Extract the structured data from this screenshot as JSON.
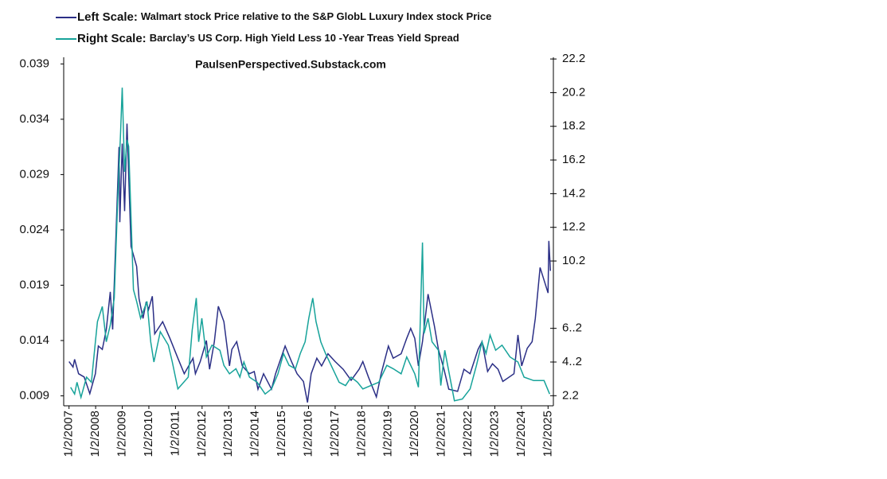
{
  "chart_data": {
    "type": "line",
    "annotation": "PaulsenPerspectived.Substack.com",
    "xlim": [
      2006.8,
      2025.2
    ],
    "xticks": [
      {
        "value": 2007,
        "label": "1/2/2007"
      },
      {
        "value": 2008,
        "label": "1/2/2008"
      },
      {
        "value": 2009,
        "label": "1/2/2009"
      },
      {
        "value": 2010,
        "label": "1/2/2010"
      },
      {
        "value": 2011,
        "label": "1/2/2011"
      },
      {
        "value": 2012,
        "label": "1/2/2012"
      },
      {
        "value": 2013,
        "label": "1/2/2013"
      },
      {
        "value": 2014,
        "label": "1/2/2014"
      },
      {
        "value": 2015,
        "label": "1/2/2015"
      },
      {
        "value": 2016,
        "label": "1/2/2016"
      },
      {
        "value": 2017,
        "label": "1/2/2017"
      },
      {
        "value": 2018,
        "label": "1/2/2018"
      },
      {
        "value": 2019,
        "label": "1/2/2019"
      },
      {
        "value": 2020,
        "label": "1/2/2020"
      },
      {
        "value": 2021,
        "label": "1/2/2021"
      },
      {
        "value": 2022,
        "label": "1/2/2022"
      },
      {
        "value": 2023,
        "label": "1/2/2023"
      },
      {
        "value": 2024,
        "label": "1/2/2024"
      },
      {
        "value": 2025,
        "label": "1/2/2025"
      }
    ],
    "ylim": [
      0.0081,
      0.0396
    ],
    "yticks": [
      0.009,
      0.014,
      0.019,
      0.024,
      0.029,
      0.034,
      0.039
    ],
    "y2lim": [
      1.6,
      22.3
    ],
    "y2ticks": [
      2.2,
      {
        "value": 4.2,
        "label": "4..2"
      },
      {
        "value": 6.2,
        "label": "6..2"
      },
      10.2,
      12.2,
      14.2,
      16.2,
      18.2,
      20.2,
      22.2
    ],
    "series": [
      {
        "scale_label": "Left Scale:",
        "name": "Walmart stock Price relative to the S&P GlobL Luxury Index stock Price",
        "color": "#2b2f86",
        "axis": "y",
        "x": [
          2007.0,
          2007.15,
          2007.21,
          2007.36,
          2007.57,
          2007.78,
          2007.99,
          2008.1,
          2008.25,
          2008.4,
          2008.55,
          2008.64,
          2008.88,
          2008.91,
          2009.0,
          2009.09,
          2009.18,
          2009.27,
          2009.33,
          2009.54,
          2009.63,
          2009.78,
          2009.9,
          2009.99,
          2010.13,
          2010.22,
          2010.52,
          2010.79,
          2011.09,
          2011.33,
          2011.66,
          2011.75,
          2011.93,
          2012.16,
          2012.28,
          2012.46,
          2012.61,
          2012.82,
          2013.03,
          2013.12,
          2013.3,
          2013.51,
          2013.78,
          2013.96,
          2014.1,
          2014.31,
          2014.61,
          2014.76,
          2015.12,
          2015.36,
          2015.57,
          2015.81,
          2015.96,
          2016.1,
          2016.31,
          2016.49,
          2016.73,
          2017.0,
          2017.3,
          2017.6,
          2017.9,
          2018.04,
          2018.25,
          2018.55,
          2018.73,
          2019.0,
          2019.18,
          2019.48,
          2019.69,
          2019.84,
          2019.99,
          2020.13,
          2020.28,
          2020.49,
          2020.73,
          2020.88,
          2021.09,
          2021.27,
          2021.6,
          2021.84,
          2022.07,
          2022.37,
          2022.52,
          2022.73,
          2022.91,
          2023.12,
          2023.3,
          2023.72,
          2023.87,
          2024.01,
          2024.22,
          2024.4,
          2024.52,
          2024.7,
          2025.0,
          2025.03,
          2025.09
        ],
        "values": [
          0.0121,
          0.0116,
          0.0123,
          0.011,
          0.0107,
          0.0092,
          0.011,
          0.0135,
          0.0132,
          0.015,
          0.0184,
          0.015,
          0.0315,
          0.0247,
          0.0318,
          0.0257,
          0.0336,
          0.0268,
          0.0225,
          0.0207,
          0.0178,
          0.016,
          0.0175,
          0.0168,
          0.018,
          0.0146,
          0.0157,
          0.0142,
          0.0124,
          0.011,
          0.0124,
          0.011,
          0.0121,
          0.014,
          0.0114,
          0.0139,
          0.0171,
          0.0157,
          0.0117,
          0.0132,
          0.0139,
          0.0117,
          0.011,
          0.0112,
          0.0096,
          0.011,
          0.0096,
          0.011,
          0.0135,
          0.0121,
          0.011,
          0.0103,
          0.0084,
          0.011,
          0.0124,
          0.0117,
          0.0128,
          0.0121,
          0.0114,
          0.0104,
          0.0114,
          0.0121,
          0.0107,
          0.0089,
          0.011,
          0.0135,
          0.0124,
          0.0128,
          0.0142,
          0.0151,
          0.0142,
          0.0117,
          0.0139,
          0.0182,
          0.0153,
          0.0132,
          0.0114,
          0.0096,
          0.0094,
          0.0114,
          0.011,
          0.0132,
          0.0139,
          0.0112,
          0.0119,
          0.0114,
          0.0103,
          0.011,
          0.0145,
          0.0117,
          0.0133,
          0.0139,
          0.016,
          0.0206,
          0.0183,
          0.023,
          0.0203
        ]
      },
      {
        "scale_label": "Right Scale:",
        "name": "Barclay’s US Corp. High Yield Less 10 -Year Treas Yield Spread",
        "color": "#17a39a",
        "axis": "y2",
        "x": [
          2007.06,
          2007.21,
          2007.3,
          2007.45,
          2007.66,
          2007.84,
          2007.99,
          2008.07,
          2008.25,
          2008.4,
          2008.55,
          2008.7,
          2008.82,
          2008.94,
          2009.0,
          2009.09,
          2009.18,
          2009.24,
          2009.42,
          2009.54,
          2009.69,
          2009.93,
          2010.07,
          2010.19,
          2010.43,
          2010.73,
          2010.88,
          2011.09,
          2011.48,
          2011.63,
          2011.78,
          2011.87,
          2011.99,
          2012.16,
          2012.37,
          2012.67,
          2012.82,
          2013.03,
          2013.27,
          2013.42,
          2013.57,
          2013.78,
          2014.07,
          2014.37,
          2014.61,
          2014.85,
          2015.06,
          2015.27,
          2015.51,
          2015.69,
          2015.87,
          2016.01,
          2016.16,
          2016.28,
          2016.46,
          2016.64,
          2016.85,
          2017.15,
          2017.39,
          2017.6,
          2017.84,
          2018.04,
          2018.34,
          2018.64,
          2018.94,
          2019.18,
          2019.48,
          2019.69,
          2019.99,
          2020.13,
          2020.28,
          2020.34,
          2020.49,
          2020.64,
          2020.88,
          2020.97,
          2021.12,
          2021.48,
          2021.78,
          2022.07,
          2022.31,
          2022.52,
          2022.67,
          2022.82,
          2023.03,
          2023.27,
          2023.57,
          2023.87,
          2024.1,
          2024.46,
          2024.85,
          2025.06
        ],
        "values": [
          2.7,
          2.3,
          3.0,
          2.1,
          3.3,
          3.0,
          5.4,
          6.6,
          7.5,
          5.4,
          6.4,
          8.0,
          13.4,
          17.9,
          20.5,
          15.5,
          17.4,
          17.0,
          8.5,
          7.8,
          6.8,
          7.8,
          5.4,
          4.2,
          6.0,
          5.2,
          4.2,
          2.6,
          3.3,
          6.1,
          8.0,
          5.4,
          6.8,
          4.5,
          5.2,
          4.9,
          4.0,
          3.5,
          3.8,
          3.3,
          4.2,
          3.3,
          3.0,
          2.3,
          2.6,
          3.5,
          4.7,
          4.0,
          3.8,
          4.7,
          5.4,
          6.8,
          8.0,
          6.6,
          5.4,
          4.7,
          4.0,
          3.0,
          2.8,
          3.3,
          3.0,
          2.6,
          2.8,
          3.0,
          4.0,
          3.8,
          3.5,
          4.5,
          3.5,
          2.7,
          11.3,
          5.9,
          6.8,
          5.4,
          4.9,
          2.8,
          4.9,
          1.9,
          2.0,
          2.6,
          4.0,
          5.4,
          4.7,
          5.8,
          4.9,
          5.2,
          4.5,
          4.2,
          3.3,
          3.1,
          3.1,
          2.3
        ]
      }
    ]
  }
}
